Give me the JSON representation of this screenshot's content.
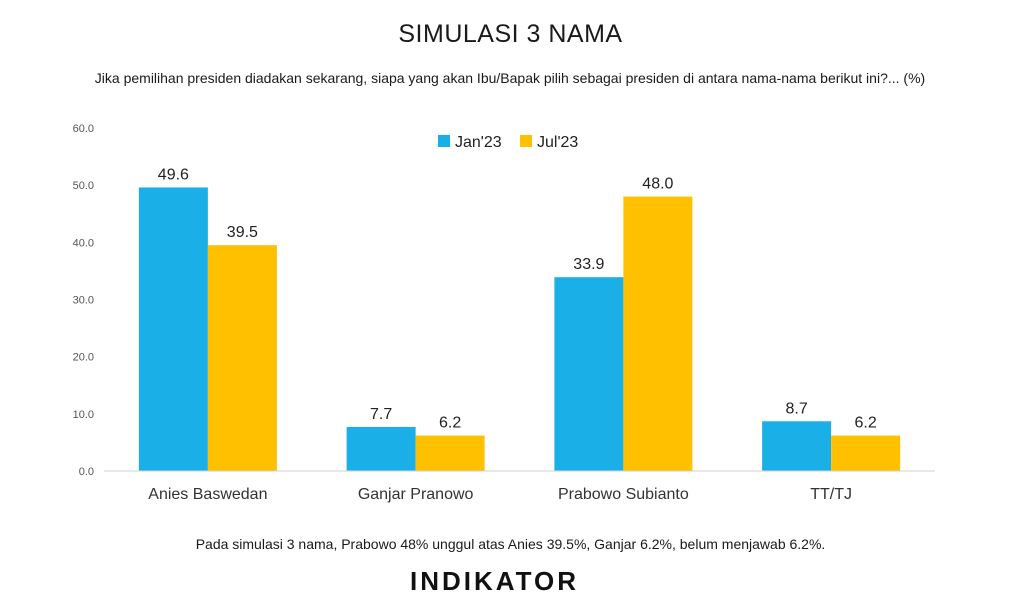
{
  "chart_data": {
    "type": "bar",
    "title": "SIMULASI 3 NAMA",
    "subtitle": "Jika pemilihan presiden diadakan sekarang, siapa yang akan Ibu/Bapak pilih sebagai presiden di antara nama-nama berikut ini?... (%)",
    "categories": [
      "Anies Baswedan",
      "Ganjar Pranowo",
      "Prabowo Subianto",
      "TT/TJ"
    ],
    "series": [
      {
        "name": "Jan'23",
        "color": "#1AAFE6",
        "values": [
          49.6,
          7.7,
          33.9,
          8.7
        ]
      },
      {
        "name": "Jul'23",
        "color": "#FFC000",
        "values": [
          39.5,
          6.2,
          48.0,
          6.2
        ]
      }
    ],
    "ylim": [
      0,
      60
    ],
    "yticks": [
      "0.0",
      "10.0",
      "20.0",
      "30.0",
      "40.0",
      "50.0",
      "60.0"
    ],
    "grid": false,
    "legend_position": "top-center",
    "xlabel": "",
    "ylabel": ""
  },
  "footnote": "Pada simulasi 3 nama, Prabowo 48% unggul atas Anies 39.5%, Ganjar 6.2%, belum menjawab 6.2%.",
  "brand": "INDIKATOR"
}
